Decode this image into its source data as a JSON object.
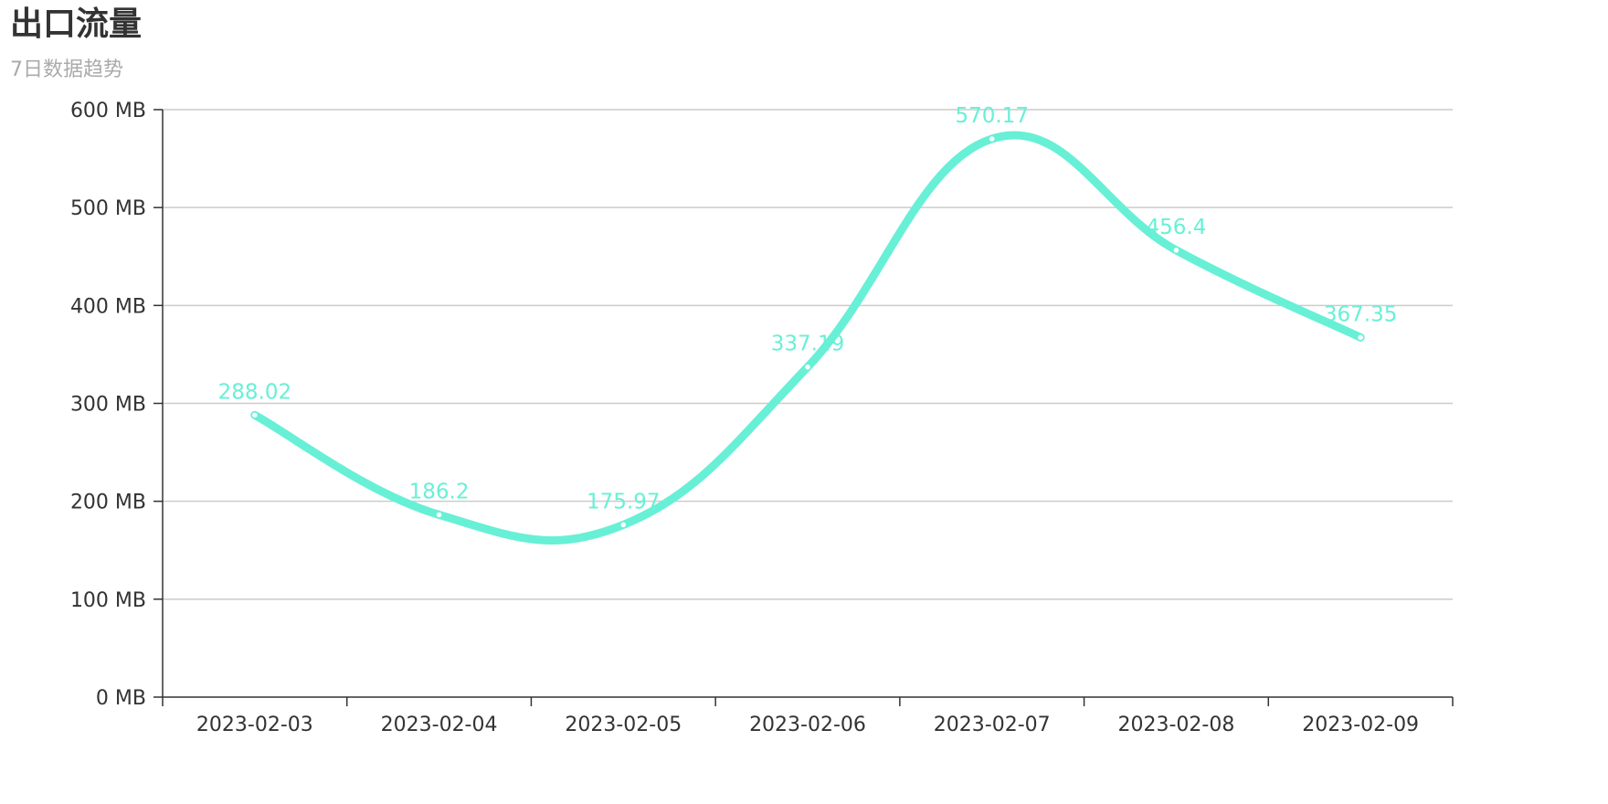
{
  "header": {
    "title": "出口流量",
    "subtitle": "7日数据趋势"
  },
  "chart_data": {
    "type": "line",
    "smooth": true,
    "categories": [
      "2023-02-03",
      "2023-02-04",
      "2023-02-05",
      "2023-02-06",
      "2023-02-07",
      "2023-02-08",
      "2023-02-09"
    ],
    "series": [
      {
        "values": [
          288.02,
          186.2,
          175.97,
          337.19,
          570.17,
          456.4,
          367.35
        ],
        "color": "#67f0d6",
        "data_labels": [
          "288.02",
          "186.2",
          "175.97",
          "337.19",
          "570.17",
          "456.4",
          "367.35"
        ]
      }
    ],
    "y_ticks": [
      0,
      100,
      200,
      300,
      400,
      500,
      600
    ],
    "y_tick_labels": [
      "0 MB",
      "100 MB",
      "200 MB",
      "300 MB",
      "400 MB",
      "500 MB",
      "600 MB"
    ],
    "ylim": [
      0,
      600
    ],
    "grid": true,
    "grid_color": "#cccccc",
    "axis_color": "#333333"
  }
}
